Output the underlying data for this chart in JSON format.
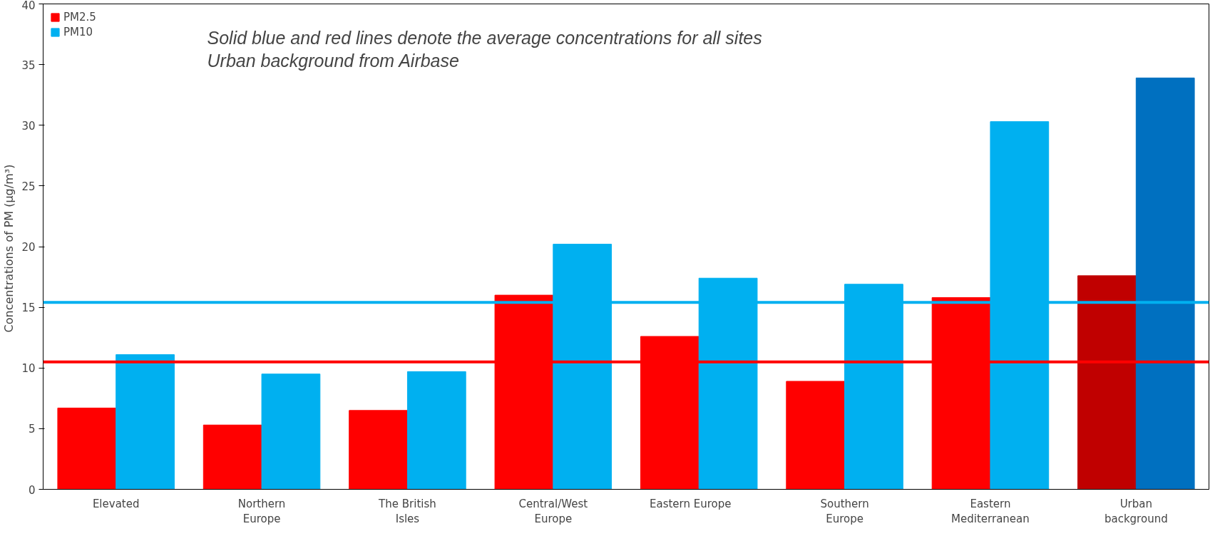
{
  "chart_data": {
    "type": "bar",
    "ylabel": "Concentrations of PM  (µg/m³)",
    "categories": [
      "Elevated",
      "Northern\nEurope",
      "The British\nIsles",
      "Central/West\nEurope",
      "Eastern      Europe",
      "Southern\nEurope",
      "Eastern\nMediterranean",
      "Urban\nbackground"
    ],
    "series": [
      {
        "name": "PM2.5",
        "color": "#ff0000",
        "colors": [
          "#ff0000",
          "#ff0000",
          "#ff0000",
          "#ff0000",
          "#ff0000",
          "#ff0000",
          "#ff0000",
          "#c00000"
        ],
        "values": [
          6.7,
          5.3,
          6.5,
          16.0,
          12.6,
          8.9,
          15.8,
          17.6
        ]
      },
      {
        "name": "PM10",
        "color": "#00b0f0",
        "colors": [
          "#00b0f0",
          "#00b0f0",
          "#00b0f0",
          "#00b0f0",
          "#00b0f0",
          "#00b0f0",
          "#00b0f0",
          "#0070c0"
        ],
        "values": [
          11.1,
          9.5,
          9.7,
          20.2,
          17.4,
          16.9,
          30.3,
          33.9
        ]
      }
    ],
    "ylim": [
      0,
      40
    ],
    "yticks": [
      0,
      5,
      10,
      15,
      20,
      25,
      30,
      35,
      40
    ],
    "grid": false,
    "legend": "top left",
    "ref_lines": [
      {
        "axis": "y",
        "value": 15.4,
        "color": "#00b0f0"
      },
      {
        "axis": "y",
        "value": 10.5,
        "color": "#ff0000"
      }
    ],
    "annotations": [
      "Solid blue and red lines denote the average concentrations for all sites",
      "Urban background from Airbase"
    ]
  }
}
